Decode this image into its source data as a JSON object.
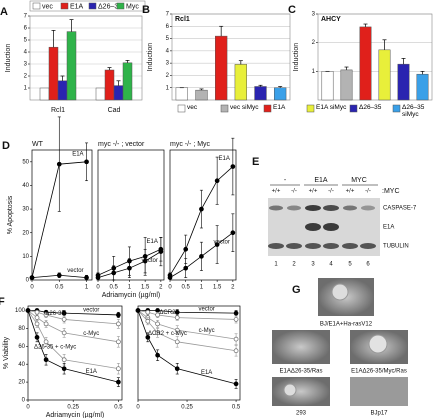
{
  "chart_data": [
    {
      "type": "bar",
      "panel": "A",
      "y_label": "Induction",
      "categories": [
        "Rcl1",
        "Cad"
      ],
      "series": [
        {
          "name": "vec",
          "color": "#ffffff",
          "values": [
            1,
            1
          ]
        },
        {
          "name": "E1A",
          "color": "#e0201b",
          "values": [
            4.4,
            2.5
          ],
          "errors": [
            1.4,
            0.2
          ]
        },
        {
          "name": "Δ26–35",
          "color": "#2a24b0",
          "values": [
            1.6,
            1.2
          ],
          "errors": [
            0.4,
            0.4
          ]
        },
        {
          "name": "Myc",
          "color": "#2fb34a",
          "values": [
            5.7,
            3.1
          ],
          "errors": [
            1.0,
            0.2
          ]
        }
      ],
      "ylim": [
        0,
        7
      ],
      "yticks": [
        1,
        2,
        3,
        4,
        5,
        6,
        7
      ],
      "grid": true
    },
    {
      "type": "bar",
      "panel": "B",
      "title": "Rcl1",
      "y_label": "Induction",
      "categories": [
        "vec",
        "vec siMyc",
        "E1A",
        "E1A siMyc",
        "Δ26–35",
        "Δ26–35 siMyc"
      ],
      "colors": [
        "#ffffff",
        "#b3b3b3",
        "#e0201b",
        "#e8ef3a",
        "#2a24b0",
        "#3aa0e8"
      ],
      "values": [
        1,
        0.8,
        5.2,
        2.9,
        1.1,
        1.0
      ],
      "errors": [
        0,
        0.1,
        0.8,
        0.3,
        0.1,
        0.1
      ],
      "ylim": [
        0,
        7
      ],
      "yticks": [
        1,
        2,
        3,
        4,
        5,
        6,
        7
      ],
      "grid": true
    },
    {
      "type": "bar",
      "panel": "C",
      "title": "AHCY",
      "y_label": "Induction",
      "colors": [
        "#ffffff",
        "#b3b3b3",
        "#e0201b",
        "#e8ef3a",
        "#2a24b0",
        "#3aa0e8"
      ],
      "values": [
        1,
        1.05,
        2.55,
        1.75,
        1.25,
        0.9
      ],
      "errors": [
        0,
        0.1,
        0.1,
        0.35,
        0.2,
        0.1
      ],
      "ylim": [
        0,
        3
      ],
      "yticks": [
        1,
        2,
        3
      ],
      "grid": true
    },
    {
      "type": "line",
      "panel": "D",
      "title": "WT",
      "y_label": "% Apoptosis",
      "x": [
        0,
        0.5,
        1
      ],
      "series": [
        {
          "name": "E1A",
          "color": "#000000",
          "marker": "filled",
          "values": [
            1,
            49,
            50
          ],
          "errors": [
            0,
            20,
            8
          ]
        },
        {
          "name": "vector",
          "color": "#000000",
          "marker": "filled",
          "values": [
            1,
            2,
            1
          ],
          "errors": [
            0,
            1,
            1
          ]
        }
      ],
      "xlim": [
        0,
        1.1
      ],
      "xticks": [
        0,
        0.5,
        1
      ],
      "ylim": [
        0,
        55
      ],
      "yticks": [
        0,
        10,
        20,
        30,
        40,
        50
      ]
    },
    {
      "type": "line",
      "title": "myc -/- ; vector",
      "x_label": "Adriamycin (µg/ml)",
      "x": [
        0,
        0.5,
        1,
        1.5,
        2
      ],
      "series": [
        {
          "name": "E1A",
          "color": "#000000",
          "marker": "filled",
          "values": [
            2,
            5,
            8,
            10,
            13
          ],
          "errors": [
            1,
            5,
            6,
            8,
            5
          ]
        },
        {
          "name": "vector",
          "color": "#000000",
          "marker": "filled",
          "values": [
            1,
            3,
            5,
            8,
            12
          ],
          "errors": [
            1,
            3,
            4,
            5,
            6
          ]
        }
      ],
      "xlim": [
        0,
        2.1
      ],
      "xticks": [
        0,
        0.5,
        1,
        1.5,
        2
      ],
      "ylim": [
        0,
        55
      ]
    },
    {
      "type": "line",
      "title": "myc -/- ; Myc",
      "x": [
        0,
        0.5,
        1,
        1.5,
        2
      ],
      "series": [
        {
          "name": "E1A",
          "color": "#000000",
          "marker": "filled",
          "values": [
            2,
            13,
            30,
            42,
            48
          ],
          "errors": [
            1,
            6,
            8,
            10,
            12
          ]
        },
        {
          "name": "vector",
          "color": "#000000",
          "marker": "filled",
          "values": [
            1,
            5,
            10,
            15,
            20
          ],
          "errors": [
            0,
            4,
            6,
            8,
            8
          ]
        }
      ],
      "xlim": [
        0,
        2.1
      ],
      "xticks": [
        0,
        0.5,
        1,
        1.5,
        2
      ],
      "ylim": [
        0,
        55
      ]
    },
    {
      "type": "line",
      "panel": "F",
      "y_label": "% Viability",
      "x_label": "Adriamycin (µg/ml)",
      "x": [
        0,
        0.05,
        0.1,
        0.2,
        0.5
      ],
      "series": [
        {
          "name": "vector",
          "color": "#000000",
          "marker": "filled",
          "values": [
            100,
            100,
            98,
            97,
            95
          ],
          "errors": [
            0,
            2,
            2,
            3,
            3
          ]
        },
        {
          "name": "Δ26-35",
          "color": "#999999",
          "marker": "open",
          "values": [
            100,
            98,
            95,
            90,
            85
          ],
          "errors": [
            0,
            2,
            3,
            4,
            5
          ]
        },
        {
          "name": "c-Myc",
          "color": "#999999",
          "marker": "open",
          "values": [
            100,
            92,
            85,
            75,
            65
          ],
          "errors": [
            0,
            3,
            4,
            5,
            6
          ]
        },
        {
          "name": "Δ26-35 + c-Myc",
          "color": "#999999",
          "marker": "open",
          "values": [
            100,
            85,
            65,
            45,
            35
          ],
          "errors": [
            0,
            4,
            5,
            6,
            6
          ]
        },
        {
          "name": "E1A",
          "color": "#000000",
          "marker": "filled",
          "values": [
            100,
            70,
            45,
            35,
            20
          ],
          "errors": [
            0,
            5,
            6,
            6,
            5
          ]
        }
      ],
      "xlim": [
        0,
        0.52
      ],
      "xticks": [
        0,
        0.25,
        0.5
      ],
      "ylim": [
        0,
        105
      ],
      "yticks": [
        0,
        20,
        40,
        60,
        80,
        100
      ]
    },
    {
      "type": "line",
      "x": [
        0,
        0.05,
        0.1,
        0.2,
        0.5
      ],
      "series": [
        {
          "name": "vector",
          "color": "#000000",
          "marker": "filled",
          "values": [
            100,
            100,
            100,
            98,
            97
          ],
          "errors": [
            0,
            2,
            2,
            3,
            3
          ]
        },
        {
          "name": "ΔCR2",
          "color": "#999999",
          "marker": "open",
          "values": [
            100,
            98,
            95,
            92,
            90
          ],
          "errors": [
            0,
            2,
            3,
            3,
            4
          ]
        },
        {
          "name": "c-Myc",
          "color": "#999999",
          "marker": "open",
          "values": [
            100,
            92,
            85,
            78,
            68
          ],
          "errors": [
            0,
            3,
            4,
            5,
            6
          ]
        },
        {
          "name": "ΔCR2 + c-Myc",
          "color": "#999999",
          "marker": "open",
          "values": [
            100,
            88,
            75,
            65,
            55
          ],
          "errors": [
            0,
            4,
            5,
            6,
            6
          ]
        },
        {
          "name": "E1A",
          "color": "#000000",
          "marker": "filled",
          "values": [
            100,
            70,
            50,
            35,
            18
          ],
          "errors": [
            0,
            5,
            6,
            6,
            5
          ]
        }
      ],
      "xlim": [
        0,
        0.52
      ],
      "xticks": [
        0,
        0.25,
        0.5
      ],
      "ylim": [
        0,
        105
      ]
    }
  ],
  "blot": {
    "panel": "E",
    "groups": [
      "-",
      "E1A",
      "MYC"
    ],
    "genotype_label": ":MYC",
    "genotypes": [
      "+/+",
      "-/-",
      "+/+",
      "-/-",
      "+/+",
      "-/-"
    ],
    "rows": [
      "CASPASE-7",
      "E1A",
      "TUBULIN"
    ],
    "lanes": [
      "1",
      "2",
      "3",
      "4",
      "5",
      "6"
    ]
  },
  "micrographs": {
    "panel": "G",
    "labels": [
      "BJ/E1A+Ha-rasV12",
      "E1AΔ26-35/Ras",
      "E1AΔ26-35/Myc/Ras",
      "293",
      "BJp17"
    ]
  }
}
